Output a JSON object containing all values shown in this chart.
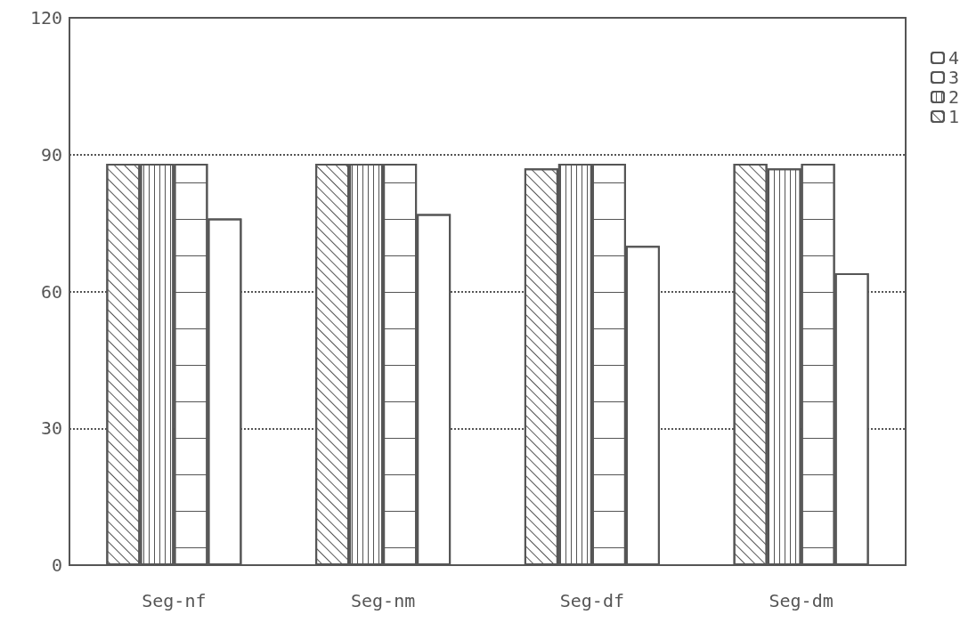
{
  "chart_data": {
    "type": "bar",
    "categories": [
      "Seg-nf",
      "Seg-nm",
      "Seg-df",
      "Seg-dm"
    ],
    "series": [
      {
        "name": "1",
        "color": "#ffffff",
        "values": [
          88,
          88,
          87,
          88
        ]
      },
      {
        "name": "2",
        "color": "#ffffff",
        "values": [
          88,
          88,
          88,
          87
        ]
      },
      {
        "name": "3",
        "color": "#ffffff",
        "values": [
          88,
          88,
          88,
          88
        ]
      },
      {
        "name": "4",
        "color": "#ffffff",
        "values": [
          76,
          77,
          70,
          64
        ]
      }
    ],
    "ylim": [
      0,
      120
    ],
    "yticks": [
      0,
      30,
      60,
      90,
      120
    ],
    "grid": "y",
    "legend": "right",
    "line_style": "dotted"
  }
}
